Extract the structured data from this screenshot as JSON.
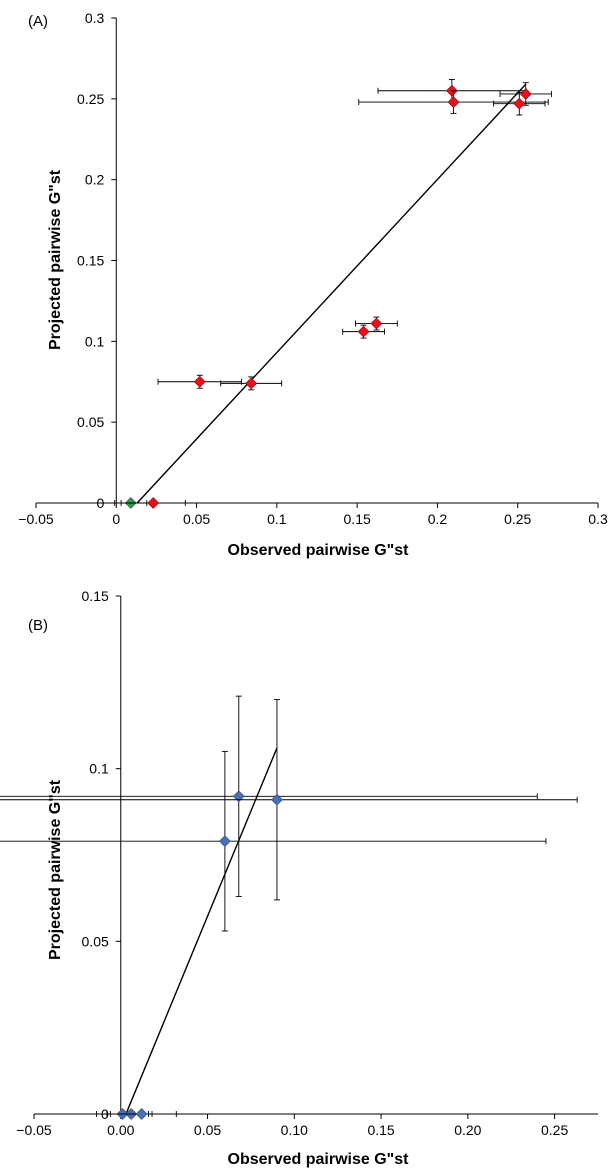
{
  "chart_data": [
    {
      "type": "scatter",
      "panel_label": "(A)",
      "xlabel": "Observed pairwise G\"st",
      "ylabel": "Projected pairwise G\"st",
      "xlim": [
        -0.05,
        0.3
      ],
      "ylim": [
        0,
        0.3
      ],
      "x_ticks": [
        -0.05,
        0,
        0.05,
        0.1,
        0.15,
        0.2,
        0.25,
        0.3
      ],
      "x_tick_labels": [
        "−0.05",
        "0",
        "0.05",
        "0.1",
        "0.15",
        "0.2",
        "0.25",
        "0.3"
      ],
      "y_ticks": [
        0,
        0.05,
        0.1,
        0.15,
        0.2,
        0.25,
        0.3
      ],
      "y_tick_labels": [
        "0",
        "0.05",
        "0.1",
        "0.15",
        "0.2",
        "0.25",
        "0.3"
      ],
      "grid": false,
      "trendline": {
        "x": [
          0.013,
          0.255
        ],
        "y": [
          0,
          0.259
        ]
      },
      "points": [
        {
          "x": 0.209,
          "y": 0.255,
          "xerr": 0.046,
          "yerr": 0.007,
          "color": "#e8101a"
        },
        {
          "x": 0.255,
          "y": 0.253,
          "xerr": 0.016,
          "yerr": 0.007,
          "color": "#e8101a"
        },
        {
          "x": 0.21,
          "y": 0.248,
          "xerr": 0.059,
          "yerr": 0.007,
          "color": "#e8101a"
        },
        {
          "x": 0.251,
          "y": 0.247,
          "xerr": 0.016,
          "yerr": 0.007,
          "color": "#e8101a"
        },
        {
          "x": 0.162,
          "y": 0.111,
          "xerr": 0.013,
          "yerr": 0.004,
          "color": "#e8101a"
        },
        {
          "x": 0.154,
          "y": 0.106,
          "xerr": 0.013,
          "yerr": 0.004,
          "color": "#e8101a"
        },
        {
          "x": 0.052,
          "y": 0.075,
          "xerr": 0.026,
          "yerr": 0.004,
          "color": "#e8101a"
        },
        {
          "x": 0.084,
          "y": 0.074,
          "xerr": 0.019,
          "yerr": 0.004,
          "color": "#e8101a"
        },
        {
          "x": 0.009,
          "y": 0.0,
          "xerr": 0.01,
          "yerr": 0,
          "color": "#2e9e3b"
        },
        {
          "x": 0.023,
          "y": 0.0,
          "xerr": 0.02,
          "yerr": 0,
          "color": "#e8101a"
        }
      ]
    },
    {
      "type": "scatter",
      "panel_label": "(B)",
      "xlabel": "Observed pairwise G\"st",
      "ylabel": "Projected pairwise G\"st",
      "xlim": [
        -0.05,
        0.275
      ],
      "ylim": [
        0,
        0.15
      ],
      "x_ticks": [
        -0.05,
        0,
        0.05,
        0.1,
        0.15,
        0.2,
        0.25
      ],
      "x_tick_labels": [
        "−0.05",
        "0.00",
        "0.05",
        "0.10",
        "0.15",
        "0.20",
        "0.25"
      ],
      "y_ticks": [
        0,
        0.05,
        0.1,
        0.15
      ],
      "y_tick_labels": [
        "0",
        "0.05",
        "0.1",
        "0.15"
      ],
      "grid": false,
      "trendline": {
        "x": [
          0.003,
          0.09
        ],
        "y": [
          0,
          0.106
        ]
      },
      "points": [
        {
          "x": 0.068,
          "y": 0.092,
          "xerr": 0.172,
          "yerr": 0.029,
          "color": "#4a6fb5"
        },
        {
          "x": 0.09,
          "y": 0.091,
          "xerr": 0.173,
          "yerr": 0.029,
          "color": "#4a6fb5"
        },
        {
          "x": 0.06,
          "y": 0.079,
          "xerr": 0.185,
          "yerr": 0.026,
          "color": "#4a6fb5"
        },
        {
          "x": 0.001,
          "y": 0.0,
          "xerr": 0.015,
          "yerr": 0,
          "color": "#4a6fb5"
        },
        {
          "x": 0.006,
          "y": 0.0,
          "xerr": 0.012,
          "yerr": 0,
          "color": "#4a6fb5"
        },
        {
          "x": 0.012,
          "y": 0.0,
          "xerr": 0.02,
          "yerr": 0,
          "color": "#4a6fb5"
        }
      ]
    }
  ]
}
